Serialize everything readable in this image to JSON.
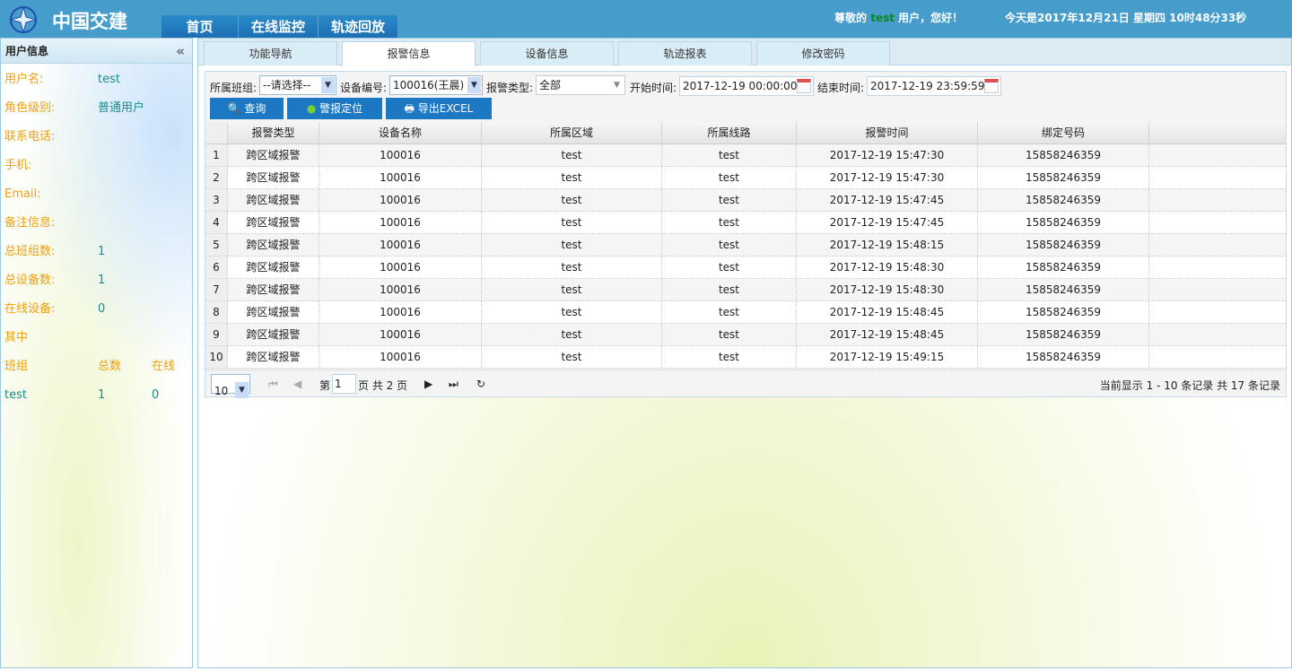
{
  "header": {
    "brand": "中国交建",
    "nav": [
      "首页",
      "在线监控",
      "轨迹回放"
    ],
    "greet_prefix": "尊敬的",
    "user": "test",
    "greet_suffix": "用户，您好！",
    "today": "今天是2017年12月21日 星期四 10时48分33秒"
  },
  "sidebar": {
    "title": "用户信息",
    "collapse": "«",
    "rows": [
      {
        "k": "用户名:",
        "v": "test"
      },
      {
        "k": "角色级别:",
        "v": "普通用户"
      },
      {
        "k": "联系电话:",
        "v": ""
      },
      {
        "k": "手机:",
        "v": ""
      },
      {
        "k": "Email:",
        "v": ""
      },
      {
        "k": "备注信息:",
        "v": ""
      },
      {
        "k": "总班组数:",
        "v": "1"
      },
      {
        "k": "总设备数:",
        "v": "1"
      },
      {
        "k": "在线设备:",
        "v": "0"
      }
    ],
    "sub_title": "其中",
    "group_headers": [
      "班组",
      "总数",
      "在线"
    ],
    "groups": [
      {
        "name": "test",
        "total": "1",
        "online": "0"
      }
    ]
  },
  "tabs": [
    "功能导航",
    "报警信息",
    "设备信息",
    "轨迹报表",
    "修改密码"
  ],
  "active_tab": "报警信息",
  "filters": {
    "group_label": "所属班组:",
    "group_value": "--请选择--",
    "device_label": "设备编号:",
    "device_value": "100016(王晨)",
    "type_label": "报警类型:",
    "type_value": "全部",
    "start_label": "开始时间:",
    "start_value": "2017-12-19 00:00:00",
    "end_label": "结束时间:",
    "end_value": "2017-12-19 23:59:59"
  },
  "buttons": {
    "query": "查询",
    "locate": "警报定位",
    "export": "导出EXCEL"
  },
  "table": {
    "columns": [
      "报警类型",
      "设备名称",
      "所属区域",
      "所属线路",
      "报警时间",
      "绑定号码"
    ],
    "rows": [
      [
        "1",
        "跨区域报警",
        "100016",
        "test",
        "test",
        "2017-12-19 15:47:30",
        "15858246359"
      ],
      [
        "2",
        "跨区域报警",
        "100016",
        "test",
        "test",
        "2017-12-19 15:47:30",
        "15858246359"
      ],
      [
        "3",
        "跨区域报警",
        "100016",
        "test",
        "test",
        "2017-12-19 15:47:45",
        "15858246359"
      ],
      [
        "4",
        "跨区域报警",
        "100016",
        "test",
        "test",
        "2017-12-19 15:47:45",
        "15858246359"
      ],
      [
        "5",
        "跨区域报警",
        "100016",
        "test",
        "test",
        "2017-12-19 15:48:15",
        "15858246359"
      ],
      [
        "6",
        "跨区域报警",
        "100016",
        "test",
        "test",
        "2017-12-19 15:48:30",
        "15858246359"
      ],
      [
        "7",
        "跨区域报警",
        "100016",
        "test",
        "test",
        "2017-12-19 15:48:30",
        "15858246359"
      ],
      [
        "8",
        "跨区域报警",
        "100016",
        "test",
        "test",
        "2017-12-19 15:48:45",
        "15858246359"
      ],
      [
        "9",
        "跨区域报警",
        "100016",
        "test",
        "test",
        "2017-12-19 15:48:45",
        "15858246359"
      ],
      [
        "10",
        "跨区域报警",
        "100016",
        "test",
        "test",
        "2017-12-19 15:49:15",
        "15858246359"
      ]
    ]
  },
  "pager": {
    "page_size": "10",
    "page_prefix": "第",
    "page": "1",
    "page_suffix": "页 共 2 页",
    "summary": "当前显示 1 - 10 条记录 共 17 条记录"
  }
}
